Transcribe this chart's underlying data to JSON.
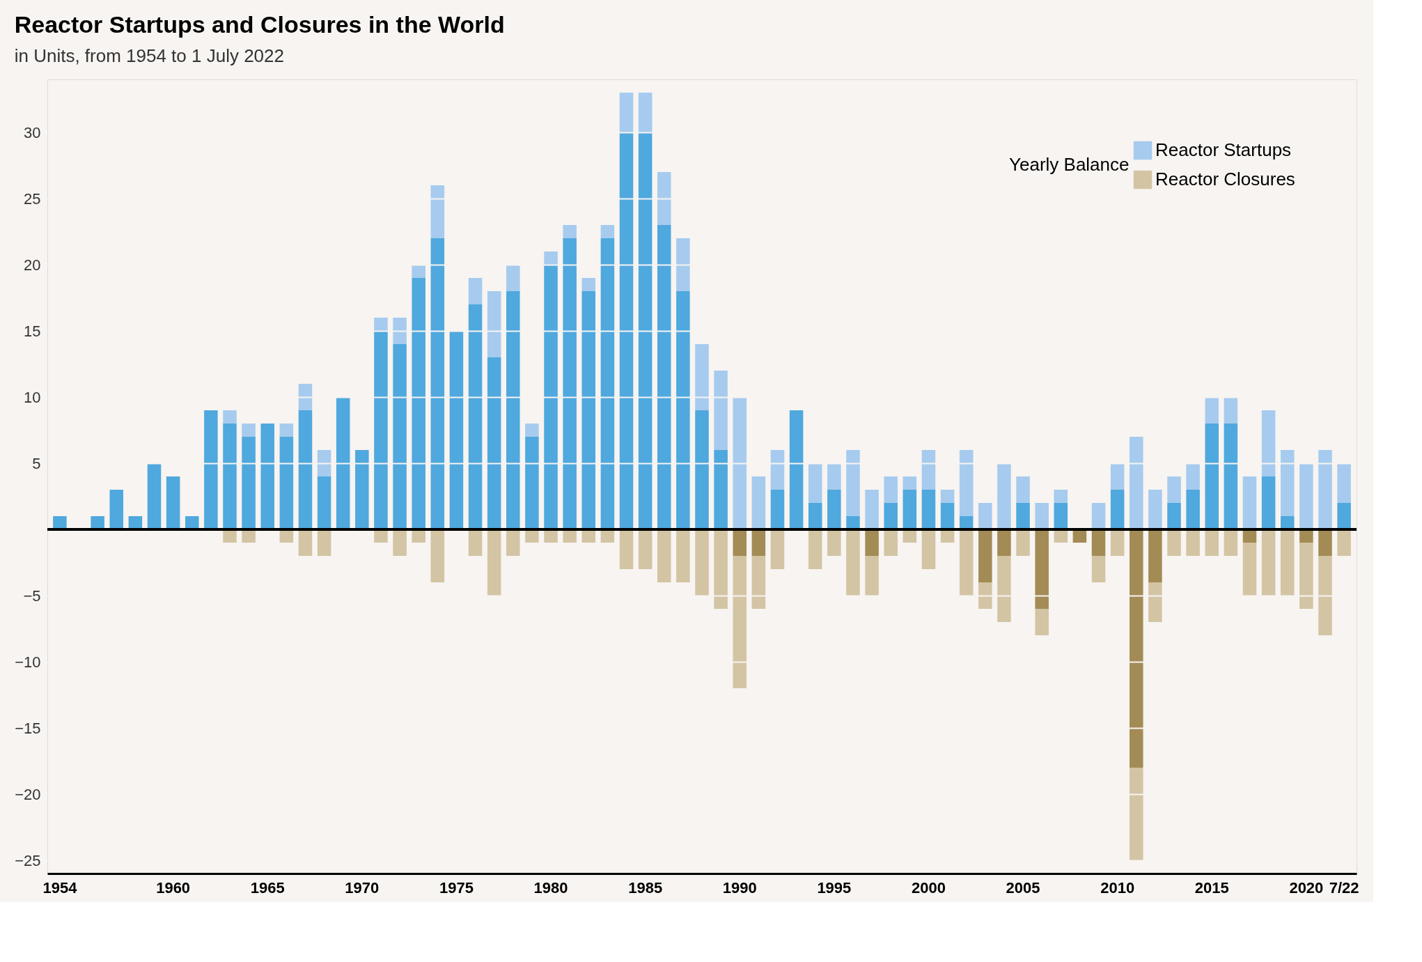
{
  "chart_data": {
    "type": "bar",
    "title": "Reactor Startups and Closures in the World",
    "subtitle": "in Units, from 1954 to 1 July 2022",
    "categories": [
      "1954",
      null,
      null,
      null,
      null,
      null,
      "1960",
      null,
      null,
      null,
      null,
      "1965",
      null,
      null,
      null,
      null,
      "1970",
      null,
      null,
      null,
      null,
      "1975",
      null,
      null,
      null,
      null,
      "1980",
      null,
      null,
      null,
      null,
      "1985",
      null,
      null,
      null,
      null,
      "1990",
      null,
      null,
      null,
      null,
      "1995",
      null,
      null,
      null,
      null,
      "2000",
      null,
      null,
      null,
      null,
      "2005",
      null,
      null,
      null,
      null,
      "2010",
      null,
      null,
      null,
      null,
      "2015",
      null,
      null,
      null,
      null,
      "2020",
      null,
      "7/22"
    ],
    "series": [
      {
        "color": "#4fa8de",
        "values": [
          1,
          null,
          1,
          3,
          1,
          5,
          4,
          1,
          9,
          8,
          7,
          8,
          7,
          9,
          4,
          10,
          6,
          15,
          14,
          19,
          22,
          15,
          17,
          13,
          18,
          7,
          20,
          22,
          18,
          22,
          30,
          30,
          23,
          18,
          9,
          6,
          null,
          null,
          3,
          9,
          2,
          3,
          1,
          null,
          2,
          3,
          3,
          2,
          1,
          null,
          null,
          2,
          null,
          2,
          null,
          null,
          3,
          null,
          null,
          2,
          3,
          8,
          8,
          null,
          4,
          1,
          null,
          null,
          2
        ]
      },
      {
        "name": "Reactor Startups",
        "color": "#a6cbee",
        "values": [
          null,
          null,
          null,
          null,
          null,
          null,
          null,
          null,
          null,
          1,
          1,
          null,
          1,
          2,
          2,
          null,
          null,
          1,
          2,
          1,
          4,
          null,
          2,
          5,
          2,
          1,
          1,
          1,
          1,
          1,
          3,
          3,
          4,
          4,
          5,
          6,
          10,
          4,
          3,
          null,
          3,
          2,
          5,
          3,
          2,
          1,
          3,
          1,
          5,
          2,
          5,
          2,
          2,
          1,
          null,
          2,
          2,
          7,
          3,
          2,
          2,
          2,
          2,
          4,
          5,
          5,
          5,
          6,
          3
        ]
      },
      {
        "color": "#a38b55",
        "values": [
          null,
          null,
          null,
          null,
          null,
          null,
          null,
          null,
          null,
          null,
          null,
          null,
          null,
          null,
          null,
          null,
          null,
          null,
          null,
          null,
          null,
          null,
          null,
          null,
          null,
          null,
          null,
          null,
          null,
          null,
          null,
          null,
          null,
          null,
          null,
          null,
          -2,
          -2,
          null,
          null,
          null,
          null,
          null,
          -2,
          null,
          null,
          null,
          null,
          null,
          -4,
          -2,
          null,
          -6,
          null,
          -1,
          -2,
          null,
          -18,
          -4,
          null,
          null,
          null,
          null,
          -1,
          null,
          null,
          -1,
          -2,
          null
        ]
      },
      {
        "name": "Reactor Closures",
        "color": "#d3c4a4",
        "values": [
          null,
          null,
          null,
          null,
          null,
          null,
          null,
          null,
          null,
          -1,
          -1,
          null,
          -1,
          -2,
          -2,
          null,
          null,
          -1,
          -2,
          -1,
          -4,
          null,
          -2,
          -5,
          -2,
          -1,
          -1,
          -1,
          -1,
          -1,
          -3,
          -3,
          -4,
          -4,
          -5,
          -6,
          -10,
          -4,
          -3,
          null,
          -3,
          -2,
          -5,
          -3,
          -2,
          -1,
          -3,
          -1,
          -5,
          -2,
          -5,
          -2,
          -2,
          -1,
          null,
          -2,
          -2,
          -7,
          -3,
          -2,
          -2,
          -2,
          -2,
          -4,
          -5,
          -5,
          -5,
          -6,
          -2
        ]
      }
    ],
    "stacked": true,
    "legend_title": "Yearly Balance",
    "legend": "top right",
    "grid": "y",
    "ylim": [
      -26,
      34
    ],
    "yticks": [
      -25,
      -20,
      -15,
      -10,
      -5,
      5,
      10,
      15,
      20,
      25,
      30
    ]
  }
}
